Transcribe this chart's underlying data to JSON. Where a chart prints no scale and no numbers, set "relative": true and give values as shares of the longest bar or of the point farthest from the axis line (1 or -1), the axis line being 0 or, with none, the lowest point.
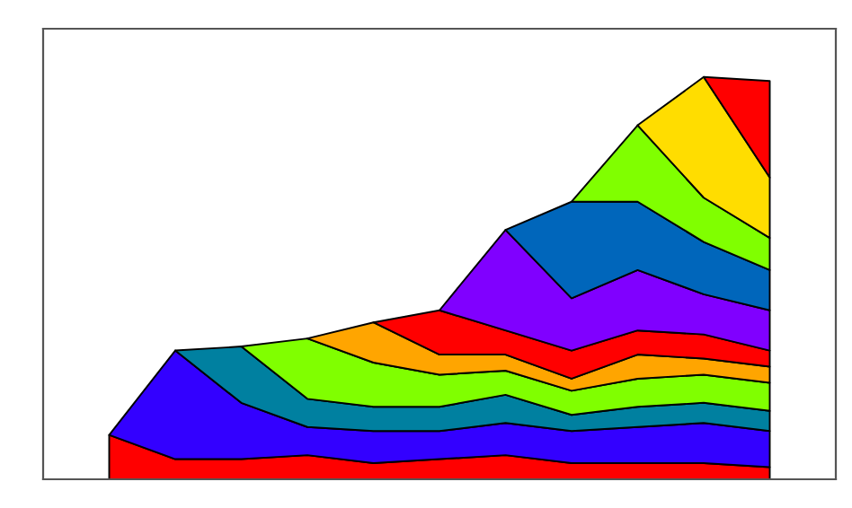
{
  "chart_data": {
    "type": "area",
    "stacked": true,
    "relative": true,
    "categories": [
      null,
      null,
      null,
      null,
      null,
      null,
      null,
      null,
      null,
      null,
      null
    ],
    "series": [
      {
        "color": "#ff0000",
        "values": [
          0.11,
          0.05,
          0.05,
          0.06,
          0.04,
          0.05,
          0.06,
          0.04,
          0.04,
          0.04,
          0.03
        ]
      },
      {
        "color": "#3300ff",
        "values": [
          0,
          0.27,
          0.14,
          0.07,
          0.08,
          0.07,
          0.08,
          0.08,
          0.09,
          0.1,
          0.09
        ]
      },
      {
        "color": "#0080a0",
        "values": [
          null,
          0,
          0.14,
          0.07,
          0.06,
          0.06,
          0.07,
          0.04,
          0.05,
          0.05,
          0.05
        ]
      },
      {
        "color": "#80ff00",
        "values": [
          null,
          null,
          0,
          0.15,
          0.11,
          0.08,
          0.06,
          0.06,
          0.07,
          0.07,
          0.07
        ]
      },
      {
        "color": "#ffa500",
        "values": [
          null,
          null,
          null,
          0,
          0.1,
          0.05,
          0.04,
          0.03,
          0.06,
          0.04,
          0.04
        ]
      },
      {
        "color": "#ff0000",
        "values": [
          null,
          null,
          null,
          null,
          0,
          0.11,
          0.06,
          0.07,
          0.06,
          0.06,
          0.04
        ]
      },
      {
        "color": "#8000ff",
        "values": [
          null,
          null,
          null,
          null,
          null,
          0,
          0.25,
          0.13,
          0.15,
          0.1,
          0.1
        ]
      },
      {
        "color": "#0066bb",
        "values": [
          null,
          null,
          null,
          null,
          null,
          null,
          0,
          0.24,
          0.17,
          0.13,
          0.1
        ]
      },
      {
        "color": "#80ff00",
        "values": [
          null,
          null,
          null,
          null,
          null,
          null,
          null,
          0,
          0.19,
          0.11,
          0.08
        ]
      },
      {
        "color": "#ffdd00",
        "values": [
          null,
          null,
          null,
          null,
          null,
          null,
          null,
          null,
          0,
          0.3,
          0.15
        ]
      },
      {
        "color": "#ff0000",
        "values": [
          null,
          null,
          null,
          null,
          null,
          null,
          null,
          null,
          null,
          0,
          0.24
        ]
      }
    ]
  }
}
